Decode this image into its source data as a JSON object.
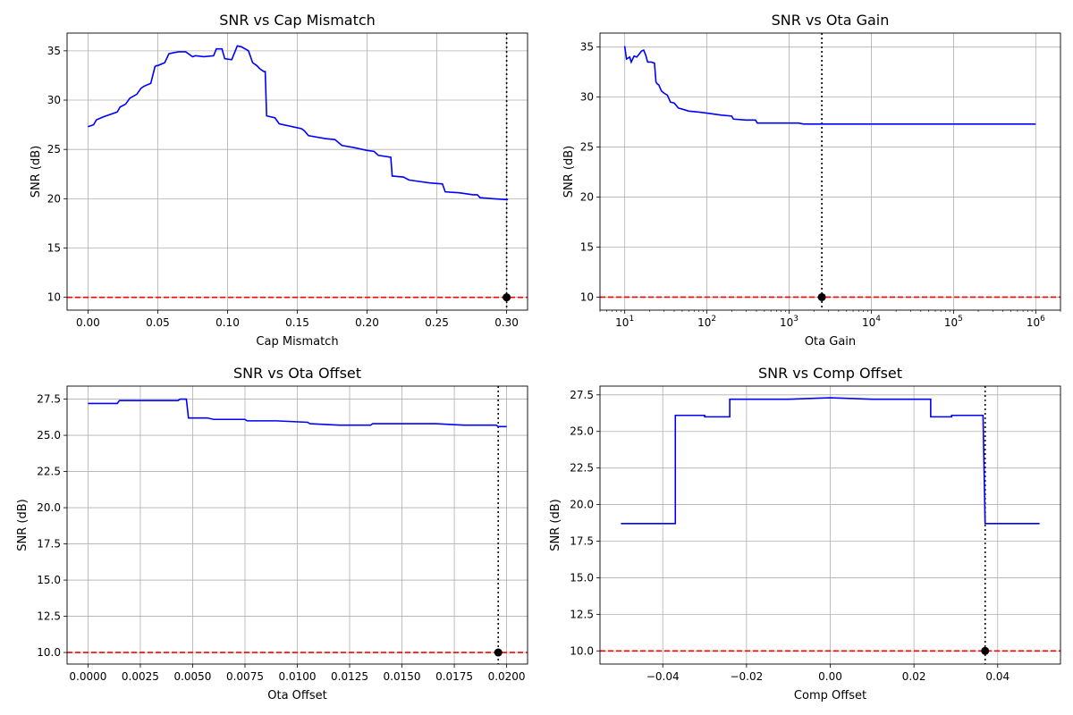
{
  "chart_data": [
    {
      "type": "line",
      "title": "SNR vs Cap Mismatch",
      "xlabel": "Cap Mismatch",
      "ylabel": "SNR (dB)",
      "xscale": "linear",
      "xlim": [
        -0.015,
        0.315
      ],
      "ylim": [
        8.7,
        36.8
      ],
      "xticks": [
        0.0,
        0.05,
        0.1,
        0.15,
        0.2,
        0.25,
        0.3
      ],
      "xtick_labels": [
        "0.00",
        "0.05",
        "0.10",
        "0.15",
        "0.20",
        "0.25",
        "0.30"
      ],
      "yticks": [
        10,
        15,
        20,
        25,
        30,
        35
      ],
      "ytick_labels": [
        "10",
        "15",
        "20",
        "25",
        "30",
        "35"
      ],
      "grid": true,
      "series": [
        {
          "color": "#0000ff",
          "x": [
            0.0,
            0.004,
            0.006,
            0.011,
            0.021,
            0.023,
            0.027,
            0.03,
            0.035,
            0.038,
            0.04,
            0.045,
            0.048,
            0.049,
            0.05,
            0.055,
            0.058,
            0.061,
            0.065,
            0.07,
            0.075,
            0.077,
            0.083,
            0.09,
            0.092,
            0.096,
            0.098,
            0.103,
            0.107,
            0.11,
            0.115,
            0.118,
            0.121,
            0.123,
            0.126,
            0.127,
            0.128,
            0.134,
            0.137,
            0.15,
            0.153,
            0.155,
            0.158,
            0.17,
            0.177,
            0.182,
            0.19,
            0.2,
            0.205,
            0.208,
            0.217,
            0.218,
            0.226,
            0.23,
            0.235,
            0.245,
            0.254,
            0.256,
            0.266,
            0.276,
            0.279,
            0.281,
            0.29,
            0.301
          ],
          "y": [
            27.3,
            27.5,
            28.0,
            28.3,
            28.8,
            29.3,
            29.6,
            30.2,
            30.6,
            31.2,
            31.4,
            31.7,
            33.4,
            33.5,
            33.5,
            33.8,
            34.7,
            34.8,
            34.9,
            34.9,
            34.4,
            34.5,
            34.4,
            34.5,
            35.2,
            35.2,
            34.2,
            34.1,
            35.5,
            35.4,
            35.0,
            33.8,
            33.5,
            33.2,
            32.9,
            32.9,
            28.4,
            28.2,
            27.6,
            27.2,
            27.1,
            26.9,
            26.4,
            26.1,
            26.0,
            25.4,
            25.2,
            24.9,
            24.8,
            24.4,
            24.2,
            22.3,
            22.2,
            21.9,
            21.8,
            21.6,
            21.5,
            20.7,
            20.6,
            20.4,
            20.4,
            20.1,
            20.0,
            19.9
          ]
        }
      ],
      "threshold": {
        "y": 10,
        "color": "#ff0000",
        "style": "dashed"
      },
      "marker_line": {
        "x": 0.3,
        "color": "#000000",
        "style": "dotted"
      },
      "marker_point": {
        "x": 0.3,
        "y": 10,
        "color": "#000000"
      }
    },
    {
      "type": "line",
      "title": "SNR vs Ota Gain",
      "xlabel": "Ota Gain",
      "ylabel": "SNR (dB)",
      "xscale": "log",
      "xlim": [
        5.0,
        2000000.0
      ],
      "ylim": [
        8.7,
        36.4
      ],
      "xticks": [
        10,
        100,
        1000,
        10000,
        100000,
        1000000
      ],
      "xtick_labels": [
        "10^1",
        "10^2",
        "10^3",
        "10^4",
        "10^5",
        "10^6"
      ],
      "yticks": [
        10,
        15,
        20,
        25,
        30,
        35
      ],
      "ytick_labels": [
        "10",
        "15",
        "20",
        "25",
        "30",
        "35"
      ],
      "grid": true,
      "series": [
        {
          "color": "#0000ff",
          "x": [
            10,
            10.5,
            11.5,
            12,
            13,
            14,
            15,
            16,
            17,
            18,
            19,
            21,
            23,
            24,
            25,
            26,
            28,
            30,
            33,
            36,
            40,
            45,
            50,
            60,
            80,
            100,
            150,
            200,
            210,
            300,
            390,
            410,
            500,
            700,
            1000,
            1300,
            1500,
            2500,
            10000,
            100000,
            1000000
          ],
          "y": [
            35.1,
            33.8,
            34.0,
            33.5,
            34.1,
            34.0,
            34.3,
            34.6,
            34.7,
            34.2,
            33.5,
            33.5,
            33.4,
            31.5,
            31.3,
            31.2,
            30.6,
            30.4,
            30.2,
            29.5,
            29.4,
            28.9,
            28.8,
            28.6,
            28.5,
            28.4,
            28.2,
            28.1,
            27.8,
            27.7,
            27.7,
            27.4,
            27.4,
            27.4,
            27.4,
            27.4,
            27.3,
            27.3,
            27.3,
            27.3,
            27.3
          ]
        }
      ],
      "threshold": {
        "y": 10,
        "color": "#ff0000",
        "style": "dashed"
      },
      "marker_line": {
        "x": 2500,
        "color": "#000000",
        "style": "dotted"
      },
      "marker_point": {
        "x": 2500,
        "y": 10,
        "color": "#000000"
      }
    },
    {
      "type": "line",
      "title": "SNR vs Ota Offset",
      "xlabel": "Ota Offset",
      "ylabel": "SNR (dB)",
      "xscale": "linear",
      "xlim": [
        -0.001,
        0.021
      ],
      "ylim": [
        9.2,
        28.4
      ],
      "xticks": [
        0.0,
        0.0025,
        0.005,
        0.0075,
        0.01,
        0.0125,
        0.015,
        0.0175,
        0.02
      ],
      "xtick_labels": [
        "0.0000",
        "0.0025",
        "0.0050",
        "0.0075",
        "0.0100",
        "0.0125",
        "0.0150",
        "0.0175",
        "0.0200"
      ],
      "yticks": [
        10.0,
        12.5,
        15.0,
        17.5,
        20.0,
        22.5,
        25.0,
        27.5
      ],
      "ytick_labels": [
        "10.0",
        "12.5",
        "15.0",
        "17.5",
        "20.0",
        "22.5",
        "25.0",
        "27.5"
      ],
      "grid": true,
      "series": [
        {
          "color": "#0000ff",
          "x": [
            0.0,
            0.0002,
            0.0014,
            0.0015,
            0.0028,
            0.003,
            0.0043,
            0.0044,
            0.0047,
            0.0048,
            0.0057,
            0.006,
            0.0075,
            0.0076,
            0.009,
            0.0105,
            0.0106,
            0.012,
            0.0135,
            0.0136,
            0.015,
            0.0165,
            0.0166,
            0.018,
            0.0195,
            0.0196,
            0.02
          ],
          "y": [
            27.2,
            27.2,
            27.2,
            27.4,
            27.4,
            27.4,
            27.4,
            27.5,
            27.5,
            26.2,
            26.2,
            26.1,
            26.1,
            26.0,
            26.0,
            25.9,
            25.8,
            25.7,
            25.7,
            25.8,
            25.8,
            25.8,
            25.8,
            25.7,
            25.7,
            25.6,
            25.6
          ]
        }
      ],
      "threshold": {
        "y": 10,
        "color": "#ff0000",
        "style": "dashed"
      },
      "marker_line": {
        "x": 0.0196,
        "color": "#000000",
        "style": "dotted"
      },
      "marker_point": {
        "x": 0.0196,
        "y": 10,
        "color": "#000000"
      }
    },
    {
      "type": "line",
      "title": "SNR vs Comp Offset",
      "xlabel": "Comp Offset",
      "ylabel": "SNR (dB)",
      "xscale": "linear",
      "xlim": [
        -0.055,
        0.055
      ],
      "ylim": [
        9.1,
        28.1
      ],
      "xticks": [
        -0.04,
        -0.02,
        0.0,
        0.02,
        0.04
      ],
      "xtick_labels": [
        "−0.04",
        "−0.02",
        "0.00",
        "0.02",
        "0.04"
      ],
      "yticks": [
        10.0,
        12.5,
        15.0,
        17.5,
        20.0,
        22.5,
        25.0,
        27.5
      ],
      "ytick_labels": [
        "10.0",
        "12.5",
        "15.0",
        "17.5",
        "20.0",
        "22.5",
        "25.0",
        "27.5"
      ],
      "grid": true,
      "series": [
        {
          "color": "#0000ff",
          "x": [
            -0.05,
            -0.037,
            -0.037,
            -0.03,
            -0.03,
            -0.024,
            -0.024,
            -0.01,
            0.0,
            0.01,
            0.024,
            0.024,
            0.029,
            0.029,
            0.0365,
            0.037,
            0.05
          ],
          "y": [
            18.7,
            18.7,
            26.1,
            26.1,
            26.0,
            26.0,
            27.2,
            27.2,
            27.3,
            27.2,
            27.2,
            26.0,
            26.0,
            26.1,
            26.1,
            18.7,
            18.7
          ]
        }
      ],
      "threshold": {
        "y": 10,
        "color": "#ff0000",
        "style": "dashed"
      },
      "marker_line": {
        "x": 0.037,
        "color": "#000000",
        "style": "dotted"
      },
      "marker_point": {
        "x": 0.037,
        "y": 10,
        "color": "#000000"
      }
    }
  ]
}
